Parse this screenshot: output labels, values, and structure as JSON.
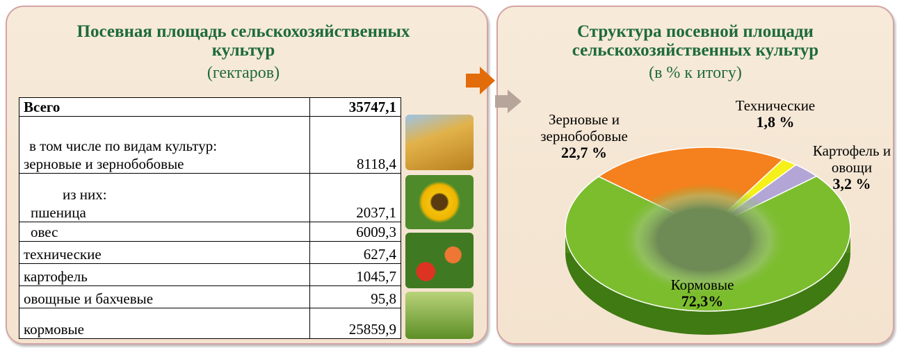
{
  "left_panel": {
    "title": "Посевная площадь сельскохозяйственных культур",
    "subtitle": "(гектаров)"
  },
  "table": {
    "rows": [
      {
        "label": "Всего",
        "value": "35747,1"
      },
      {
        "note": "в том числе по видам культур:",
        "label": "зерновые и зернобобовые",
        "value": "8118,4"
      },
      {
        "note": "из них:",
        "label": "пшеница",
        "value": "2037,1"
      },
      {
        "label": "овес",
        "value": "6009,3"
      },
      {
        "label": "технические",
        "value": "627,4"
      },
      {
        "label": "картофель",
        "value": "1045,7"
      },
      {
        "label": "овощные и бахчевые",
        "value": "95,8"
      },
      {
        "label": "кормовые",
        "value": "25859,9"
      }
    ]
  },
  "chart_data": {
    "type": "pie",
    "title": "Структура посевной площади сельскохозяйственных культур",
    "subtitle": "(в % к итогу)",
    "categories": [
      "Зерновые и зернобобовые",
      "Технические",
      "Картофель и овощи",
      "Кормовые"
    ],
    "values": [
      22.7,
      1.8,
      3.2,
      72.3
    ],
    "value_labels": [
      "22,7 %",
      "1,8 %",
      "3,2 %",
      "72,3%"
    ],
    "colors": [
      "#f5801e",
      "#f6f01a",
      "#b3a6d6",
      "#7cbd2e"
    ]
  }
}
